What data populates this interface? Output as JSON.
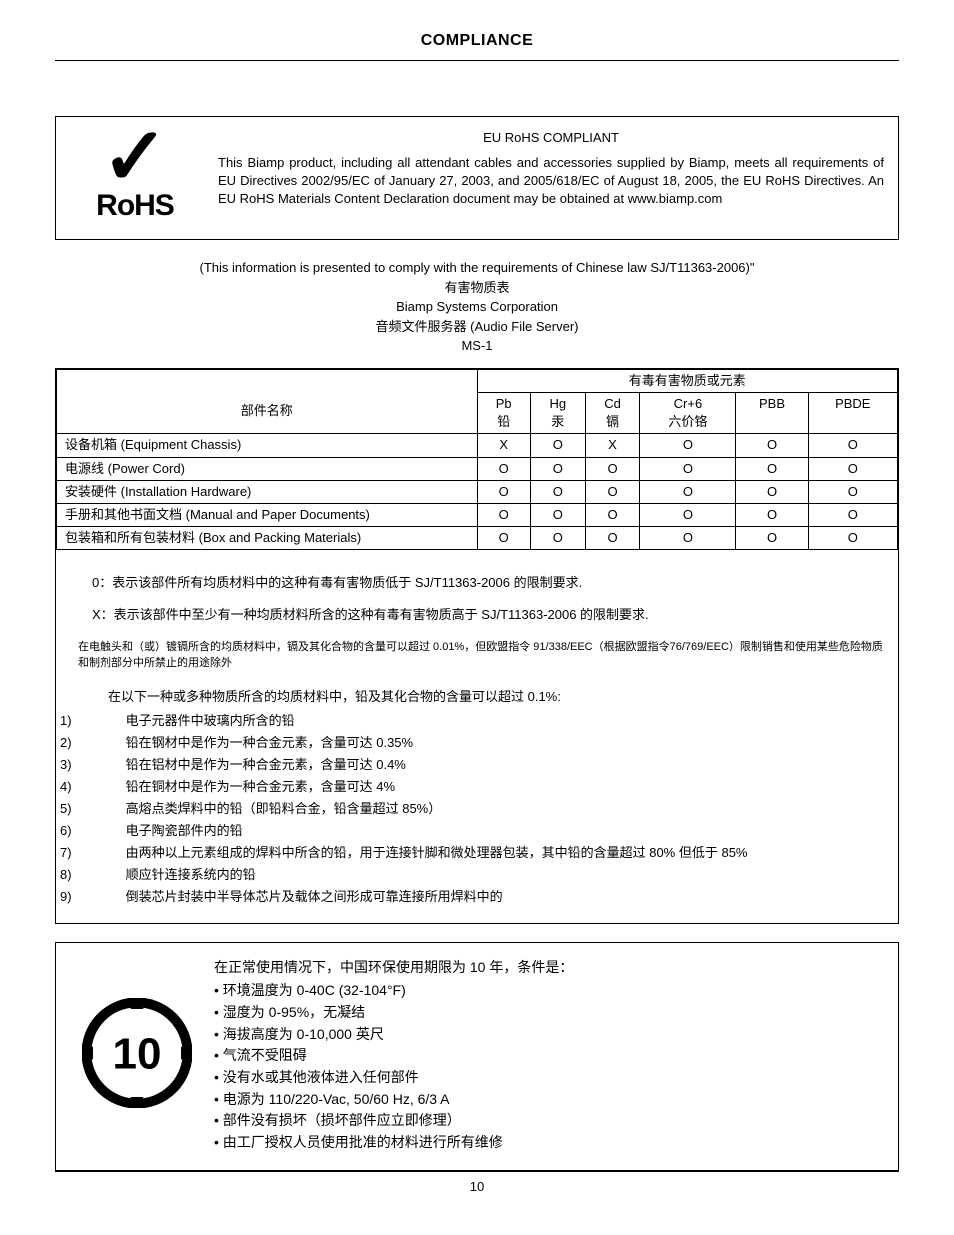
{
  "header": {
    "title": "COMPLIANCE"
  },
  "rohs": {
    "logo_check": "✓",
    "logo_text": "RoHS",
    "heading": "EU RoHS COMPLIANT",
    "body": "This Biamp product, including all attendant cables and accessories supplied by Biamp, meets all requirements of EU Directives 2002/95/EC of January 27, 2003, and 2005/618/EC of August 18, 2005, the EU RoHS Directives.  An EU RoHS Materials Content Declaration document may be obtained at www.biamp.com"
  },
  "chinese_intro": {
    "line1": "(This information is presented to comply with the requirements of Chinese law SJ/T11363-2006)\"",
    "line2": "有害物质表",
    "line3": "Biamp Systems Corporation",
    "line4": "音频文件服务器 (Audio File Server)",
    "line5": "MS-1"
  },
  "table": {
    "super_header": "有毒有害物质或元素",
    "part_header_cn": "部件名称",
    "columns": [
      {
        "sym": "Pb",
        "cn": "铅"
      },
      {
        "sym": "Hg",
        "cn": "汞"
      },
      {
        "sym": "Cd",
        "cn": "镉"
      },
      {
        "sym": "Cr+6",
        "cn": "六价铬"
      },
      {
        "sym": "PBB",
        "cn": ""
      },
      {
        "sym": "PBDE",
        "cn": ""
      }
    ],
    "rows": [
      {
        "name": "设备机箱 (Equipment Chassis)",
        "vals": [
          "X",
          "O",
          "X",
          "O",
          "O",
          "O"
        ]
      },
      {
        "name": "电源线 (Power Cord)",
        "vals": [
          "O",
          "O",
          "O",
          "O",
          "O",
          "O"
        ]
      },
      {
        "name": "安装硬件 (Installation Hardware)",
        "vals": [
          "O",
          "O",
          "O",
          "O",
          "O",
          "O"
        ]
      },
      {
        "name": "手册和其他书面文档 (Manual and Paper Documents)",
        "vals": [
          "O",
          "O",
          "O",
          "O",
          "O",
          "O"
        ]
      },
      {
        "name": "包装箱和所有包装材料 (Box and Packing Materials)",
        "vals": [
          "O",
          "O",
          "O",
          "O",
          "O",
          "O"
        ]
      }
    ]
  },
  "legend": {
    "o": "0：表示该部件所有均质材料中的这种有毒有害物质低于 SJ/T11363-2006 的限制要求.",
    "x": "X：表示该部件中至少有一种均质材料所含的这种有毒有害物质高于 SJ/T11363-2006 的限制要求.",
    "small": "在电触头和（或）镀镉所含的均质材料中，镉及其化合物的含量可以超过 0.01%，但欧盟指令 91/338/EEC（根据欧盟指令76/769/EEC）限制销售和使用某些危险物质和制剂部分中所禁止的用途除外",
    "lead_intro": "在以下一种或多种物质所含的均质材料中，铅及其化合物的含量可以超过 0.1%:",
    "items": [
      "电子元器件中玻璃内所含的铅",
      "铅在钢材中是作为一种合金元素，含量可达 0.35%",
      "铅在铝材中是作为一种合金元素，含量可达 0.4%",
      "铅在铜材中是作为一种合金元素，含量可达 4%",
      "高熔点类焊料中的铅（即铅料合金，铅含量超过 85%）",
      "电子陶瓷部件内的铅",
      "由两种以上元素组成的焊料中所含的铅，用于连接针脚和微处理器包装，其中铅的含量超过 80% 但低于 85%",
      "顺应针连接系统内的铅",
      "倒装芯片封装中半导体芯片及载体之间形成可靠连接所用焊料中的"
    ]
  },
  "env": {
    "badge_number": "10",
    "intro": "在正常使用情况下，中国环保使用期限为 10 年，条件是：",
    "bullets": [
      "环境温度为 0-40C (32-104°F)",
      "湿度为 0-95%，无凝结",
      "海拔高度为 0-10,000 英尺",
      "气流不受阻碍",
      "没有水或其他液体进入任何部件",
      "电源为 110/220-Vac, 50/60 Hz, 6/3 A",
      "部件没有损坏（损坏部件应立即修理）",
      "由工厂授权人员使用批准的材料进行所有维修"
    ]
  },
  "footer": {
    "page": "10"
  }
}
